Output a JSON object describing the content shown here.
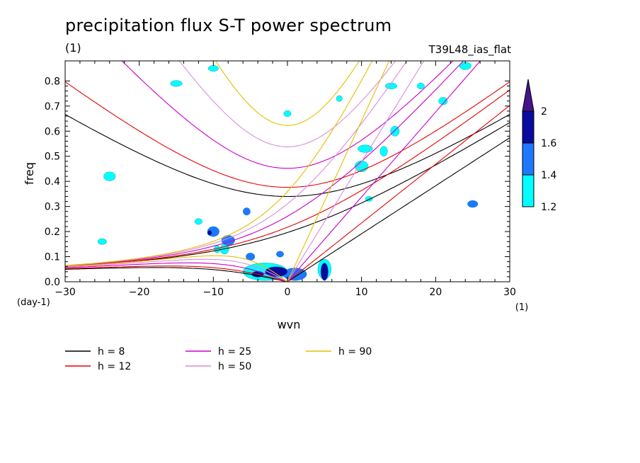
{
  "header": {
    "title": "precipitation flux S-T power spectrum",
    "unit_left": "(1)",
    "experiment": "T39L48_ias_flat"
  },
  "chart_data": {
    "type": "contour",
    "title": "precipitation flux S-T power spectrum",
    "xlabel": "wvn",
    "ylabel": "freq",
    "x_unit": "(1)",
    "y_unit": "(day-1)",
    "xlim": [
      -30,
      30
    ],
    "ylim": [
      0,
      0.88
    ],
    "xticks": [
      -30,
      -20,
      -10,
      0,
      10,
      20,
      30
    ],
    "yticks": [
      0.0,
      0.1,
      0.2,
      0.3,
      0.4,
      0.5,
      0.6,
      0.7,
      0.8
    ],
    "ytick_labels": [
      "0.0",
      "0.1",
      "0.2",
      "0.3",
      "0.4",
      "0.5",
      "0.6",
      "0.7",
      "0.8"
    ],
    "colorbar": {
      "levels": [
        1.2,
        1.4,
        1.6,
        2
      ],
      "labels": [
        "1.2",
        "1.4",
        "1.6",
        "2"
      ],
      "colors": [
        "#00ffff",
        "#1e78ff",
        "#0a0aa0",
        "#46148c"
      ]
    },
    "dispersion_curves": [
      {
        "label": "h =  8",
        "h": 8,
        "color": "#000000"
      },
      {
        "label": "h = 12",
        "h": 12,
        "color": "#e60000"
      },
      {
        "label": "h = 25",
        "h": 25,
        "color": "#c800c8"
      },
      {
        "label": "h = 50",
        "h": 50,
        "color": "#dc8cdc"
      },
      {
        "label": "h = 90",
        "h": 90,
        "color": "#e6be00"
      }
    ],
    "blobs": [
      {
        "x": -3,
        "y": 0.04,
        "rx": 3.0,
        "ry": 0.035,
        "level": 1
      },
      {
        "x": -1.5,
        "y": 0.04,
        "rx": 1.5,
        "ry": 0.02,
        "level": 3
      },
      {
        "x": -4,
        "y": 0.03,
        "rx": 0.8,
        "ry": 0.012,
        "level": 3
      },
      {
        "x": 1,
        "y": 0.03,
        "rx": 1.6,
        "ry": 0.025,
        "level": 2
      },
      {
        "x": 5,
        "y": 0.05,
        "rx": 0.9,
        "ry": 0.04,
        "level": 1
      },
      {
        "x": 5,
        "y": 0.04,
        "rx": 0.5,
        "ry": 0.035,
        "level": 3
      },
      {
        "x": -1,
        "y": 0.11,
        "rx": 0.5,
        "ry": 0.012,
        "level": 2
      },
      {
        "x": -8,
        "y": 0.165,
        "rx": 0.9,
        "ry": 0.02,
        "level": 2
      },
      {
        "x": -10,
        "y": 0.2,
        "rx": 0.8,
        "ry": 0.02,
        "level": 2
      },
      {
        "x": -10.5,
        "y": 0.195,
        "rx": 0.3,
        "ry": 0.01,
        "level": 3
      },
      {
        "x": -8.5,
        "y": 0.13,
        "rx": 0.6,
        "ry": 0.02,
        "level": 1
      },
      {
        "x": -5,
        "y": 0.1,
        "rx": 0.6,
        "ry": 0.015,
        "level": 2
      },
      {
        "x": -12,
        "y": 0.24,
        "rx": 0.5,
        "ry": 0.012,
        "level": 1
      },
      {
        "x": -25,
        "y": 0.16,
        "rx": 0.6,
        "ry": 0.012,
        "level": 1
      },
      {
        "x": -24,
        "y": 0.42,
        "rx": 0.8,
        "ry": 0.018,
        "level": 1
      },
      {
        "x": -5.5,
        "y": 0.28,
        "rx": 0.5,
        "ry": 0.015,
        "level": 2
      },
      {
        "x": 10,
        "y": 0.46,
        "rx": 0.9,
        "ry": 0.022,
        "level": 1
      },
      {
        "x": 10.5,
        "y": 0.53,
        "rx": 1.0,
        "ry": 0.015,
        "level": 1
      },
      {
        "x": 13,
        "y": 0.52,
        "rx": 0.5,
        "ry": 0.02,
        "level": 1
      },
      {
        "x": 14.5,
        "y": 0.6,
        "rx": 0.6,
        "ry": 0.02,
        "level": 1
      },
      {
        "x": 25,
        "y": 0.31,
        "rx": 0.7,
        "ry": 0.014,
        "level": 2
      },
      {
        "x": 11,
        "y": 0.33,
        "rx": 0.5,
        "ry": 0.01,
        "level": 1
      },
      {
        "x": 0,
        "y": 0.67,
        "rx": 0.5,
        "ry": 0.012,
        "level": 1
      },
      {
        "x": -10,
        "y": 0.85,
        "rx": 0.7,
        "ry": 0.012,
        "level": 1
      },
      {
        "x": -15,
        "y": 0.79,
        "rx": 0.8,
        "ry": 0.012,
        "level": 1
      },
      {
        "x": 21,
        "y": 0.72,
        "rx": 0.6,
        "ry": 0.015,
        "level": 1
      },
      {
        "x": 14,
        "y": 0.78,
        "rx": 0.8,
        "ry": 0.012,
        "level": 1
      },
      {
        "x": 18,
        "y": 0.78,
        "rx": 0.5,
        "ry": 0.012,
        "level": 1
      },
      {
        "x": 7,
        "y": 0.73,
        "rx": 0.4,
        "ry": 0.012,
        "level": 1
      },
      {
        "x": 24,
        "y": 0.86,
        "rx": 0.8,
        "ry": 0.015,
        "level": 1
      },
      {
        "x": -9.5,
        "y": 0.13,
        "rx": 0.4,
        "ry": 0.015,
        "level": 1
      }
    ]
  }
}
